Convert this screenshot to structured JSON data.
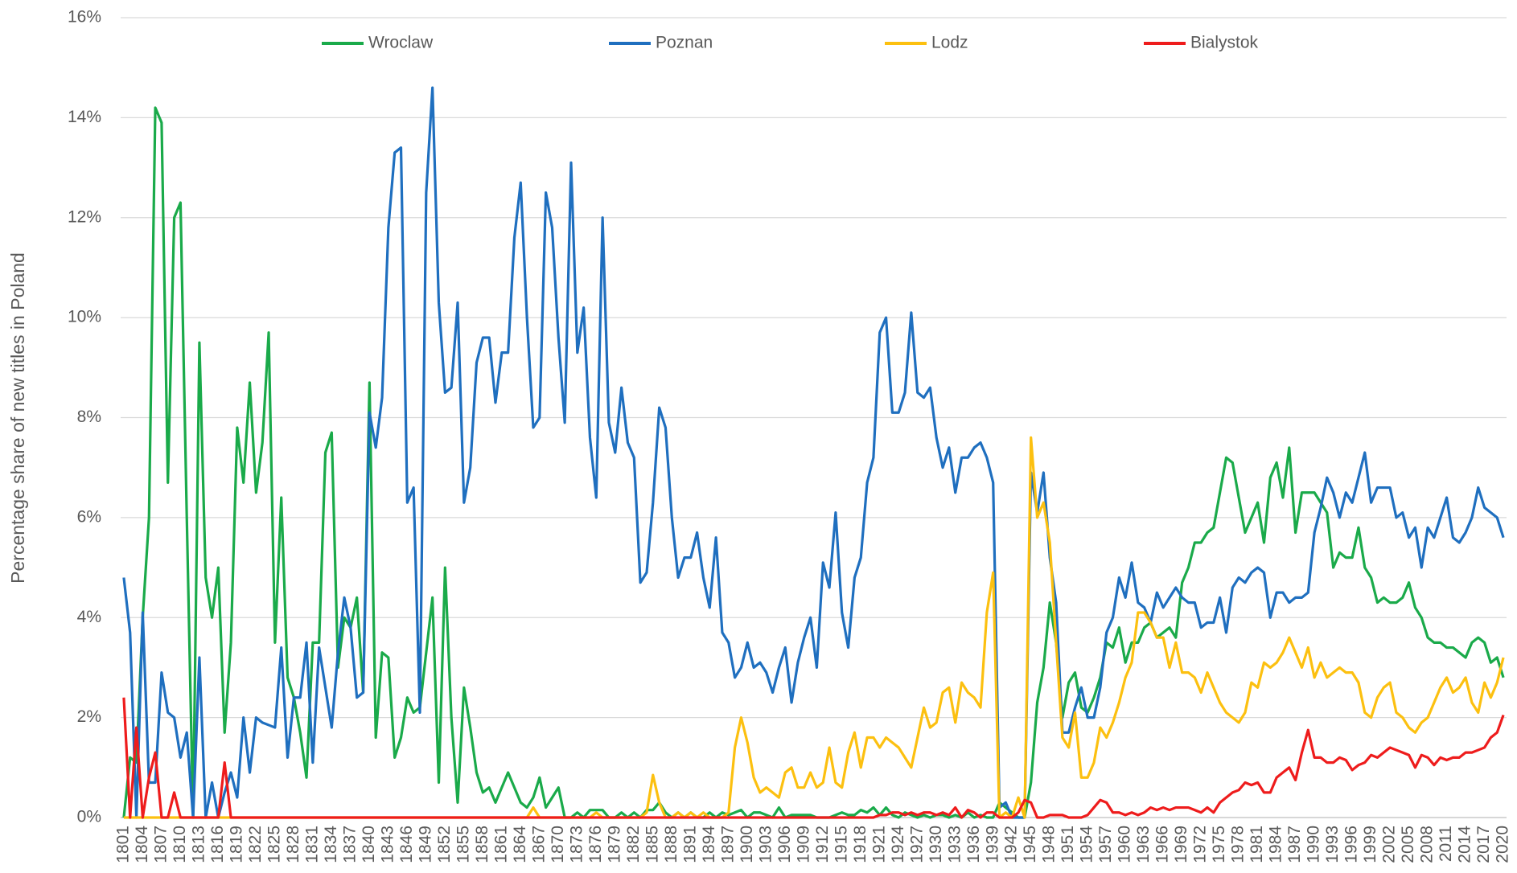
{
  "chart_data": {
    "type": "line",
    "ylabel": "Percentage share of new titles in Poland",
    "categories": [
      "1801",
      null,
      null,
      "1804",
      null,
      null,
      "1807",
      null,
      null,
      "1810",
      null,
      null,
      "1813",
      null,
      null,
      "1816",
      null,
      null,
      "1819",
      null,
      null,
      "1822",
      null,
      null,
      "1825",
      null,
      null,
      "1828",
      null,
      null,
      "1831",
      null,
      null,
      "1834",
      null,
      null,
      "1837",
      null,
      null,
      "1840",
      null,
      null,
      "1843",
      null,
      null,
      "1846",
      null,
      null,
      "1849",
      null,
      null,
      "1852",
      null,
      null,
      "1855",
      null,
      null,
      "1858",
      null,
      null,
      "1861",
      null,
      null,
      "1864",
      null,
      null,
      "1867",
      null,
      null,
      "1870",
      null,
      null,
      "1873",
      null,
      null,
      "1876",
      null,
      null,
      "1879",
      null,
      null,
      "1882",
      null,
      null,
      "1885",
      null,
      null,
      "1888",
      null,
      null,
      "1891",
      null,
      null,
      "1894",
      null,
      null,
      "1897",
      null,
      null,
      "1900",
      null,
      null,
      "1903",
      null,
      null,
      "1906",
      null,
      null,
      "1909",
      null,
      null,
      "1912",
      null,
      null,
      "1915",
      null,
      null,
      "1918",
      null,
      null,
      "1921",
      null,
      null,
      "1924",
      null,
      null,
      "1927",
      null,
      null,
      "1930",
      null,
      null,
      "1933",
      null,
      null,
      "1936",
      null,
      null,
      "1939",
      null,
      null,
      "1942",
      null,
      null,
      "1945",
      null,
      null,
      "1948",
      null,
      null,
      "1951",
      null,
      null,
      "1954",
      null,
      null,
      "1957",
      null,
      null,
      "1960",
      null,
      null,
      "1963",
      null,
      null,
      "1966",
      null,
      null,
      "1969",
      null,
      null,
      "1972",
      null,
      null,
      "1975",
      null,
      null,
      "1978",
      null,
      null,
      "1981",
      null,
      null,
      "1984",
      null,
      null,
      "1987",
      null,
      null,
      "1990",
      null,
      null,
      "1993",
      null,
      null,
      "1996",
      null,
      null,
      "1999",
      null,
      null,
      "2002",
      null,
      null,
      "2005",
      null,
      null,
      "2008",
      null,
      null,
      "2011",
      null,
      null,
      "2014",
      null,
      null,
      "2017",
      null,
      null,
      "2020"
    ],
    "series": [
      {
        "name": "Wroclaw",
        "color": "#1aaa4a",
        "values": [
          0,
          1.2,
          1.1,
          4,
          6,
          14.2,
          13.9,
          6.7,
          12,
          12.3,
          6,
          0,
          9.5,
          4.8,
          4,
          5,
          1.7,
          3.5,
          7.8,
          6.7,
          8.7,
          6.5,
          7.5,
          9.7,
          3.5,
          6.4,
          2.8,
          2.4,
          1.7,
          0.8,
          3.5,
          3.5,
          7.3,
          7.7,
          3,
          4,
          3.8,
          4.4,
          2.5,
          8.7,
          1.6,
          3.3,
          3.2,
          1.2,
          1.6,
          2.4,
          2.1,
          2.2,
          3.3,
          4.4,
          0.7,
          5,
          2,
          0.3,
          2.6,
          1.8,
          0.9,
          0.5,
          0.6,
          0.3,
          0.6,
          0.9,
          0.6,
          0.3,
          0.2,
          0.4,
          0.8,
          0.2,
          0.4,
          0.6,
          0,
          0,
          0.1,
          0,
          0.15,
          0.15,
          0.15,
          0,
          0,
          0.1,
          0,
          0.1,
          0,
          0.15,
          0.15,
          0.3,
          0.1,
          0,
          0.1,
          0,
          0.1,
          0,
          0,
          0.1,
          0,
          0.1,
          0.05,
          0.1,
          0.15,
          0,
          0.1,
          0.1,
          0.05,
          0,
          0.2,
          0,
          0.05,
          0.05,
          0.05,
          0.05,
          0,
          0,
          0,
          0.05,
          0.1,
          0.05,
          0.05,
          0.15,
          0.1,
          0.2,
          0.05,
          0.2,
          0.05,
          0,
          0.1,
          0.05,
          0,
          0.05,
          0,
          0.05,
          0.05,
          0,
          0.05,
          0,
          0.1,
          0,
          0.05,
          0,
          0,
          0.3,
          0.2,
          0.1,
          0,
          0,
          0.7,
          2.3,
          3,
          4.3,
          3.5,
          2,
          2.7,
          2.9,
          2.2,
          2.1,
          2.4,
          2.8,
          3.5,
          3.4,
          3.8,
          3.1,
          3.5,
          3.5,
          3.8,
          3.9,
          3.6,
          3.7,
          3.8,
          3.6,
          4.7,
          5,
          5.5,
          5.5,
          5.7,
          5.8,
          6.5,
          7.2,
          7.1,
          6.4,
          5.7,
          6,
          6.3,
          5.5,
          6.8,
          7.1,
          6.4,
          7.4,
          5.7,
          6.5,
          6.5,
          6.5,
          6.3,
          6.1,
          5,
          5.3,
          5.2,
          5.2,
          5.8,
          5,
          4.8,
          4.3,
          4.4,
          4.3,
          4.3,
          4.4,
          4.7,
          4.2,
          4,
          3.6,
          3.5,
          3.5,
          3.4,
          3.4,
          3.3,
          3.2,
          3.5,
          3.6,
          3.5,
          3.1,
          3.2,
          2.8
        ]
      },
      {
        "name": "Poznan",
        "color": "#1f6fbf",
        "values": [
          4.8,
          3.7,
          0,
          4.1,
          0.7,
          0.7,
          2.9,
          2.1,
          2,
          1.2,
          1.7,
          0,
          3.2,
          0,
          0.7,
          0,
          0.5,
          0.9,
          0.4,
          2,
          0.9,
          2,
          1.9,
          1.85,
          1.8,
          3.4,
          1.2,
          2.4,
          2.4,
          3.5,
          1.1,
          3.4,
          2.6,
          1.8,
          3.3,
          4.4,
          3.8,
          2.4,
          2.5,
          8.1,
          7.4,
          8.4,
          11.8,
          13.3,
          13.4,
          6.3,
          6.6,
          2.1,
          12.5,
          14.6,
          10.3,
          8.5,
          8.6,
          10.3,
          6.3,
          7,
          9.1,
          9.6,
          9.6,
          8.3,
          9.3,
          9.3,
          11.6,
          12.7,
          10,
          7.8,
          8,
          12.5,
          11.8,
          9.6,
          7.9,
          13.1,
          9.3,
          10.2,
          7.6,
          6.4,
          12,
          7.9,
          7.3,
          8.6,
          7.5,
          7.2,
          4.7,
          4.9,
          6.3,
          8.2,
          7.8,
          6,
          4.8,
          5.2,
          5.2,
          5.7,
          4.8,
          4.2,
          5.6,
          3.7,
          3.5,
          2.8,
          3,
          3.5,
          3,
          3.1,
          2.9,
          2.5,
          3,
          3.4,
          2.3,
          3.1,
          3.6,
          4,
          3,
          5.1,
          4.6,
          6.1,
          4.1,
          3.4,
          4.8,
          5.2,
          6.7,
          7.2,
          9.7,
          10,
          8.1,
          8.1,
          8.5,
          10.1,
          8.5,
          8.4,
          8.6,
          7.6,
          7,
          7.4,
          6.5,
          7.2,
          7.2,
          7.4,
          7.5,
          7.2,
          6.7,
          0.2,
          0.3,
          0,
          0,
          0,
          6.9,
          6.1,
          6.9,
          5.2,
          4.3,
          1.7,
          1.7,
          2.2,
          2.6,
          2,
          2,
          2.6,
          3.7,
          4,
          4.8,
          4.4,
          5.1,
          4.3,
          4.2,
          3.9,
          4.5,
          4.2,
          4.4,
          4.6,
          4.4,
          4.3,
          4.3,
          3.8,
          3.9,
          3.9,
          4.4,
          3.7,
          4.6,
          4.8,
          4.7,
          4.9,
          5,
          4.9,
          4,
          4.5,
          4.5,
          4.3,
          4.4,
          4.4,
          4.5,
          5.7,
          6.2,
          6.8,
          6.5,
          6,
          6.5,
          6.3,
          6.8,
          7.3,
          6.3,
          6.6,
          6.6,
          6.6,
          6,
          6.1,
          5.6,
          5.8,
          5,
          5.8,
          5.6,
          6,
          6.4,
          5.6,
          5.5,
          5.7,
          6,
          6.6,
          6.2,
          6.1,
          6,
          5.6
        ]
      },
      {
        "name": "Lodz",
        "color": "#fcc010",
        "values": [
          0,
          0,
          0,
          0,
          0,
          0,
          0,
          0,
          0,
          0,
          0,
          0,
          0,
          0,
          0,
          0,
          0,
          0,
          0,
          0,
          0,
          0,
          0,
          0,
          0,
          0,
          0,
          0,
          0,
          0,
          0,
          0,
          0,
          0,
          0,
          0,
          0,
          0,
          0,
          0,
          0,
          0,
          0,
          0,
          0,
          0,
          0,
          0,
          0,
          0,
          0,
          0,
          0,
          0,
          0,
          0,
          0,
          0,
          0,
          0,
          0,
          0,
          0,
          0,
          0,
          0.2,
          0,
          0,
          0,
          0,
          0,
          0,
          0,
          0,
          0,
          0.1,
          0,
          0,
          0,
          0,
          0,
          0,
          0,
          0.1,
          0.85,
          0.3,
          0,
          0,
          0.1,
          0,
          0.1,
          0,
          0.1,
          0,
          0,
          0,
          0.1,
          1.4,
          2,
          1.5,
          0.8,
          0.5,
          0.6,
          0.5,
          0.4,
          0.9,
          1,
          0.6,
          0.6,
          0.9,
          0.6,
          0.7,
          1.4,
          0.7,
          0.6,
          1.3,
          1.7,
          1,
          1.6,
          1.6,
          1.4,
          1.6,
          1.5,
          1.4,
          1.2,
          1,
          1.6,
          2.2,
          1.8,
          1.9,
          2.5,
          2.6,
          1.9,
          2.7,
          2.5,
          2.4,
          2.2,
          4.1,
          4.9,
          0,
          0.1,
          0,
          0.4,
          0,
          7.6,
          6,
          6.3,
          5.5,
          3.5,
          1.6,
          1.4,
          2.1,
          0.8,
          0.8,
          1.1,
          1.8,
          1.6,
          1.9,
          2.3,
          2.8,
          3.1,
          4.1,
          4.1,
          3.9,
          3.6,
          3.6,
          3,
          3.5,
          2.9,
          2.9,
          2.8,
          2.5,
          2.9,
          2.6,
          2.3,
          2.1,
          2,
          1.9,
          2.1,
          2.7,
          2.6,
          3.1,
          3,
          3.1,
          3.3,
          3.6,
          3.3,
          3,
          3.4,
          2.8,
          3.1,
          2.8,
          2.9,
          3,
          2.9,
          2.9,
          2.7,
          2.1,
          2,
          2.4,
          2.6,
          2.7,
          2.1,
          2,
          1.8,
          1.7,
          1.9,
          2,
          2.3,
          2.6,
          2.8,
          2.5,
          2.6,
          2.8,
          2.3,
          2.1,
          2.7,
          2.4,
          2.7,
          3.2
        ]
      },
      {
        "name": "Bialystok",
        "color": "#ee1c1c",
        "values": [
          2.4,
          0,
          1.8,
          0,
          0.8,
          1.3,
          0,
          0,
          0.5,
          0,
          0,
          0,
          0,
          0,
          0,
          0,
          1.1,
          0,
          0,
          0,
          0,
          0,
          0,
          0,
          0,
          0,
          0,
          0,
          0,
          0,
          0,
          0,
          0,
          0,
          0,
          0,
          0,
          0,
          0,
          0,
          0,
          0,
          0,
          0,
          0,
          0,
          0,
          0,
          0,
          0,
          0,
          0,
          0,
          0,
          0,
          0,
          0,
          0,
          0,
          0,
          0,
          0,
          0,
          0,
          0,
          0,
          0,
          0,
          0,
          0,
          0,
          0,
          0,
          0,
          0,
          0,
          0,
          0,
          0,
          0,
          0,
          0,
          0,
          0,
          0,
          0,
          0,
          0,
          0,
          0,
          0,
          0,
          0,
          0,
          0,
          0,
          0,
          0,
          0,
          0,
          0,
          0,
          0,
          0,
          0,
          0,
          0,
          0,
          0,
          0,
          0,
          0,
          0,
          0,
          0,
          0,
          0,
          0,
          0,
          0,
          0.05,
          0.05,
          0.1,
          0.1,
          0.05,
          0.1,
          0.05,
          0.1,
          0.1,
          0.05,
          0.1,
          0.05,
          0.2,
          0,
          0.15,
          0.1,
          0,
          0.1,
          0.1,
          0,
          0,
          0,
          0.1,
          0.35,
          0.3,
          0,
          0,
          0.05,
          0.05,
          0.05,
          0,
          0,
          0,
          0.05,
          0.2,
          0.35,
          0.3,
          0.1,
          0.1,
          0.05,
          0.1,
          0.05,
          0.1,
          0.2,
          0.15,
          0.2,
          0.15,
          0.2,
          0.2,
          0.2,
          0.15,
          0.1,
          0.2,
          0.1,
          0.3,
          0.4,
          0.5,
          0.55,
          0.7,
          0.65,
          0.7,
          0.5,
          0.5,
          0.8,
          0.9,
          1,
          0.75,
          1.3,
          1.75,
          1.2,
          1.2,
          1.1,
          1.1,
          1.2,
          1.15,
          0.95,
          1.05,
          1.1,
          1.25,
          1.2,
          1.3,
          1.4,
          1.35,
          1.3,
          1.25,
          1,
          1.25,
          1.2,
          1.05,
          1.2,
          1.15,
          1.2,
          1.2,
          1.3,
          1.3,
          1.35,
          1.4,
          1.6,
          1.7,
          2.05
        ]
      }
    ],
    "ylim": [
      0,
      16
    ],
    "yticks": [
      {
        "value": 0,
        "label": "0%"
      },
      {
        "value": 2,
        "label": "2%"
      },
      {
        "value": 4,
        "label": "4%"
      },
      {
        "value": 6,
        "label": "6%"
      },
      {
        "value": 8,
        "label": "8%"
      },
      {
        "value": 10,
        "label": "10%"
      },
      {
        "value": 12,
        "label": "12%"
      },
      {
        "value": 14,
        "label": "14%"
      },
      {
        "value": 16,
        "label": "16%"
      }
    ],
    "grid": true,
    "legend": "top"
  }
}
